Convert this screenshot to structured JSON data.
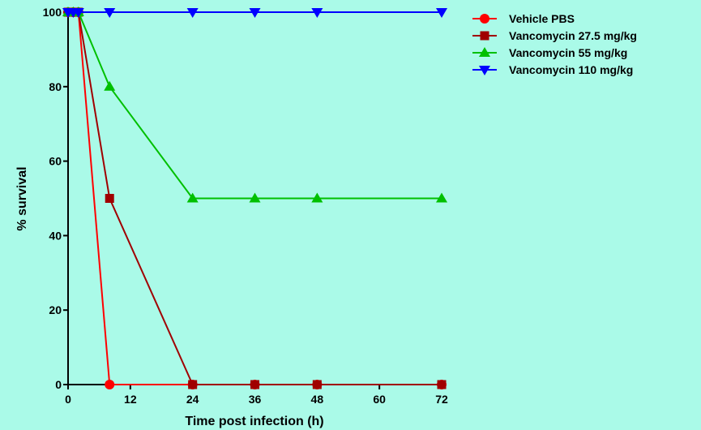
{
  "chart_data": {
    "type": "line",
    "title": "",
    "xlabel": "Time post infection (h)",
    "ylabel": "% survival",
    "xlim": [
      0,
      72
    ],
    "ylim": [
      0,
      100
    ],
    "xticks": [
      0,
      12,
      24,
      36,
      48,
      60,
      72
    ],
    "yticks": [
      0,
      20,
      40,
      60,
      80,
      100
    ],
    "grid": false,
    "legend": "top-right",
    "series": [
      {
        "name": "Vehicle PBS",
        "color": "#ff0000",
        "marker": "circle",
        "points": [
          [
            0,
            100
          ],
          [
            1,
            100
          ],
          [
            2,
            100
          ],
          [
            8,
            0
          ],
          [
            24,
            0
          ],
          [
            36,
            0
          ],
          [
            48,
            0
          ],
          [
            72,
            0
          ]
        ]
      },
      {
        "name": "Vancomycin 27.5 mg/kg",
        "color": "#a00000",
        "marker": "square",
        "points": [
          [
            0,
            100
          ],
          [
            1,
            100
          ],
          [
            2,
            100
          ],
          [
            8,
            50
          ],
          [
            24,
            0
          ],
          [
            36,
            0
          ],
          [
            48,
            0
          ],
          [
            72,
            0
          ]
        ]
      },
      {
        "name": "Vancomycin 55 mg/kg",
        "color": "#00c000",
        "marker": "triangle-up",
        "points": [
          [
            0,
            100
          ],
          [
            1,
            100
          ],
          [
            2,
            100
          ],
          [
            8,
            80
          ],
          [
            24,
            50
          ],
          [
            36,
            50
          ],
          [
            48,
            50
          ],
          [
            72,
            50
          ]
        ]
      },
      {
        "name": "Vancomycin 110 mg/kg",
        "color": "#0000ff",
        "marker": "triangle-down",
        "points": [
          [
            0,
            100
          ],
          [
            1,
            100
          ],
          [
            2,
            100
          ],
          [
            8,
            100
          ],
          [
            24,
            100
          ],
          [
            36,
            100
          ],
          [
            48,
            100
          ],
          [
            72,
            100
          ]
        ]
      }
    ]
  }
}
